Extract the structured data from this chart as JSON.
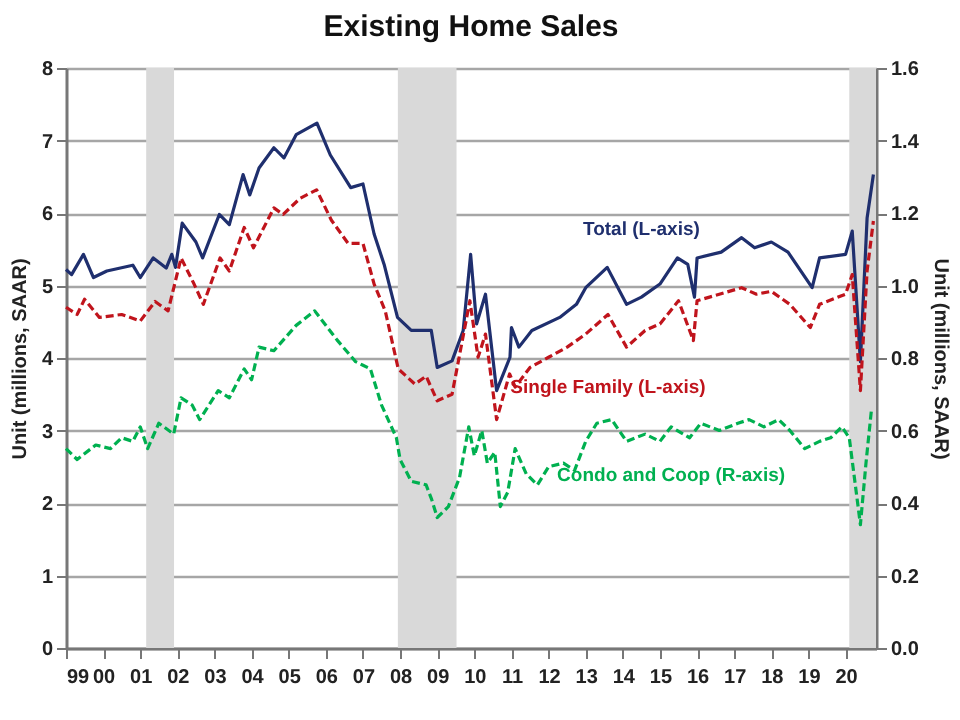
{
  "chart_data": {
    "type": "line",
    "title": "Existing Home Sales",
    "ylabel": "Unit (millions, SAAR)",
    "y2label": "Unit (millions, SAAR)",
    "xlim": [
      1999,
      2020.82
    ],
    "xticks": [
      {
        "value": 1999,
        "label": "99"
      },
      {
        "value": 2000,
        "label": "00"
      },
      {
        "value": 2001,
        "label": "01"
      },
      {
        "value": 2002,
        "label": "02"
      },
      {
        "value": 2003,
        "label": "03"
      },
      {
        "value": 2004,
        "label": "04"
      },
      {
        "value": 2005,
        "label": "05"
      },
      {
        "value": 2006,
        "label": "06"
      },
      {
        "value": 2007,
        "label": "07"
      },
      {
        "value": 2008,
        "label": "08"
      },
      {
        "value": 2009,
        "label": "09"
      },
      {
        "value": 2010,
        "label": "10"
      },
      {
        "value": 2011,
        "label": "11"
      },
      {
        "value": 2012,
        "label": "12"
      },
      {
        "value": 2013,
        "label": "13"
      },
      {
        "value": 2014,
        "label": "14"
      },
      {
        "value": 2015,
        "label": "15"
      },
      {
        "value": 2016,
        "label": "16"
      },
      {
        "value": 2017,
        "label": "17"
      },
      {
        "value": 2018,
        "label": "18"
      },
      {
        "value": 2019,
        "label": "19"
      },
      {
        "value": 2020,
        "label": "20"
      }
    ],
    "ylim": [
      0,
      8
    ],
    "yticks": [
      0,
      1,
      2,
      3,
      4,
      5,
      6,
      7,
      8
    ],
    "y2lim": [
      0,
      1.6
    ],
    "y2ticks": [
      {
        "value": 0,
        "label": "0.0"
      },
      0.2,
      0.4,
      0.6,
      0.8,
      {
        "value": 1,
        "label": "1.0"
      },
      1.2,
      1.4,
      1.6
    ],
    "grid": "y",
    "legend": false,
    "bands": [
      {
        "axis": "x",
        "from": 2001.16,
        "to": 2001.91,
        "color": "#d9d9d9"
      },
      {
        "axis": "x",
        "from": 2007.94,
        "to": 2009.52,
        "color": "#d9d9d9"
      },
      {
        "axis": "x",
        "from": 2020.1,
        "to": 2020.82,
        "color": "#d9d9d9"
      }
    ],
    "series": [
      {
        "name": "Total (L-axis)",
        "color": "#1f2f6e",
        "line_style": "solid",
        "x": [
          1999.0,
          1999.15,
          1999.47,
          1999.74,
          2000.1,
          2000.8,
          2001.0,
          2001.35,
          2001.7,
          2001.85,
          2001.95,
          2002.13,
          2002.5,
          2002.68,
          2003.13,
          2003.4,
          2003.77,
          2003.95,
          2004.2,
          2004.6,
          2004.87,
          2005.2,
          2005.76,
          2006.12,
          2006.67,
          2007.0,
          2007.3,
          2007.57,
          2007.93,
          2008.3,
          2008.84,
          2009.0,
          2009.4,
          2009.7,
          2009.9,
          2010.06,
          2010.3,
          2010.6,
          2010.96,
          2011.0,
          2011.2,
          2011.55,
          2012.3,
          2012.75,
          2013.0,
          2013.58,
          2014.1,
          2014.5,
          2015.0,
          2015.47,
          2015.75,
          2015.93,
          2016.0,
          2016.65,
          2017.2,
          2017.55,
          2018.0,
          2018.45,
          2019.1,
          2019.3,
          2020.0,
          2020.18,
          2020.4,
          2020.58,
          2020.75
        ],
        "values": [
          5.22,
          5.15,
          5.43,
          5.11,
          5.2,
          5.28,
          5.11,
          5.38,
          5.24,
          5.43,
          5.25,
          5.86,
          5.6,
          5.38,
          5.98,
          5.84,
          6.53,
          6.25,
          6.62,
          6.9,
          6.76,
          7.08,
          7.24,
          6.8,
          6.35,
          6.4,
          5.71,
          5.29,
          4.56,
          4.38,
          4.38,
          3.87,
          3.96,
          4.38,
          5.43,
          4.47,
          4.88,
          3.55,
          4.01,
          4.42,
          4.15,
          4.38,
          4.56,
          4.74,
          4.97,
          5.25,
          4.74,
          4.84,
          5.02,
          5.38,
          5.29,
          4.84,
          5.38,
          5.46,
          5.66,
          5.52,
          5.6,
          5.46,
          4.97,
          5.38,
          5.43,
          5.75,
          3.95,
          5.93,
          6.53
        ]
      },
      {
        "name": "Single Family (L-axis)",
        "color": "#c0141c",
        "line_style": "dashed",
        "x": [
          1999.0,
          1999.3,
          1999.5,
          1999.9,
          2000.5,
          2001.0,
          2001.4,
          2001.75,
          2002.1,
          2002.45,
          2002.7,
          2003.15,
          2003.4,
          2003.8,
          2004.05,
          2004.6,
          2004.85,
          2005.3,
          2005.75,
          2006.15,
          2006.6,
          2007.0,
          2007.3,
          2007.6,
          2007.95,
          2008.4,
          2008.7,
          2009.0,
          2009.4,
          2009.88,
          2010.1,
          2010.3,
          2010.6,
          2010.95,
          2011.1,
          2011.5,
          2012.0,
          2012.5,
          2013.0,
          2013.6,
          2014.1,
          2014.6,
          2015.0,
          2015.5,
          2015.9,
          2016.0,
          2016.6,
          2017.2,
          2017.6,
          2018.0,
          2018.5,
          2019.05,
          2019.3,
          2020.0,
          2020.18,
          2020.4,
          2020.58,
          2020.75
        ],
        "values": [
          4.7,
          4.6,
          4.81,
          4.56,
          4.6,
          4.51,
          4.78,
          4.65,
          5.38,
          5.02,
          4.74,
          5.38,
          5.2,
          5.8,
          5.52,
          6.07,
          5.98,
          6.2,
          6.32,
          5.9,
          5.58,
          5.58,
          5.02,
          4.65,
          3.85,
          3.64,
          3.75,
          3.41,
          3.5,
          4.79,
          4.01,
          4.33,
          3.15,
          3.78,
          3.6,
          3.87,
          4.01,
          4.15,
          4.33,
          4.6,
          4.15,
          4.38,
          4.47,
          4.79,
          4.24,
          4.79,
          4.88,
          4.97,
          4.88,
          4.92,
          4.74,
          4.42,
          4.74,
          4.88,
          5.15,
          3.55,
          5.2,
          5.89
        ]
      },
      {
        "name": "Condo and Coop (R-axis)",
        "color": "#00b050",
        "line_style": "dashed",
        "axis": "y2",
        "x": [
          1999.0,
          1999.3,
          1999.8,
          2000.2,
          2000.5,
          2000.8,
          2001.0,
          2001.2,
          2001.5,
          2001.9,
          2002.1,
          2002.4,
          2002.6,
          2003.1,
          2003.4,
          2003.8,
          2004.0,
          2004.2,
          2004.6,
          2005.2,
          2005.7,
          2006.3,
          2006.8,
          2007.0,
          2007.2,
          2007.5,
          2007.9,
          2008.0,
          2008.3,
          2008.7,
          2008.85,
          2009.0,
          2009.3,
          2009.6,
          2009.85,
          2010.0,
          2010.2,
          2010.35,
          2010.55,
          2010.7,
          2010.9,
          2011.1,
          2011.4,
          2011.7,
          2012.0,
          2012.4,
          2012.7,
          2013.0,
          2013.3,
          2013.7,
          2014.1,
          2014.6,
          2015.0,
          2015.3,
          2015.8,
          2016.1,
          2016.6,
          2017.1,
          2017.4,
          2017.8,
          2018.2,
          2018.5,
          2018.9,
          2019.3,
          2019.6,
          2019.9,
          2020.1,
          2020.3,
          2020.4,
          2020.55,
          2020.7
        ],
        "values": [
          0.55,
          0.52,
          0.56,
          0.55,
          0.58,
          0.57,
          0.61,
          0.55,
          0.62,
          0.59,
          0.69,
          0.67,
          0.63,
          0.71,
          0.69,
          0.77,
          0.74,
          0.83,
          0.82,
          0.89,
          0.93,
          0.85,
          0.79,
          0.78,
          0.77,
          0.67,
          0.58,
          0.52,
          0.46,
          0.45,
          0.41,
          0.36,
          0.39,
          0.47,
          0.61,
          0.53,
          0.6,
          0.51,
          0.54,
          0.39,
          0.43,
          0.55,
          0.48,
          0.45,
          0.5,
          0.51,
          0.49,
          0.57,
          0.62,
          0.63,
          0.57,
          0.59,
          0.57,
          0.61,
          0.58,
          0.62,
          0.6,
          0.62,
          0.63,
          0.61,
          0.63,
          0.6,
          0.55,
          0.57,
          0.58,
          0.61,
          0.58,
          0.42,
          0.34,
          0.51,
          0.66
        ]
      }
    ]
  }
}
